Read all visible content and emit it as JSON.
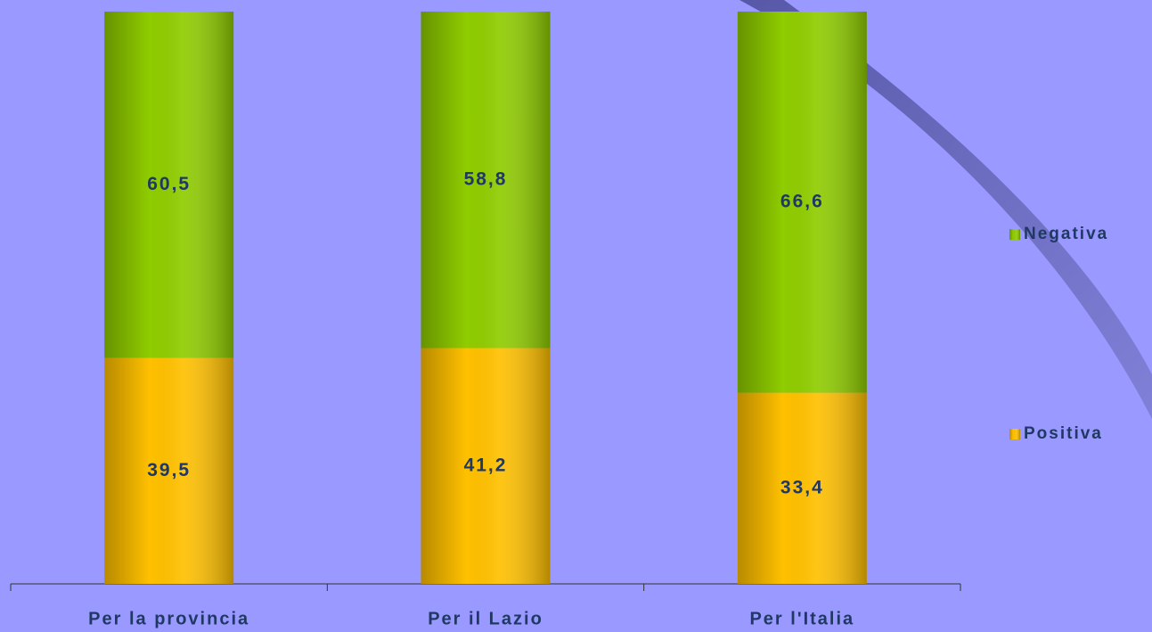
{
  "chart_data": {
    "type": "stacked_bar",
    "categories": [
      "Per la provincia",
      "Per il Lazio",
      "Per l'Italia"
    ],
    "series": [
      {
        "name": "Positiva",
        "color": "#ffc000",
        "values": [
          39.5,
          41.2,
          33.4
        ],
        "value_labels": [
          "39,5",
          "41,2",
          "33,4"
        ]
      },
      {
        "name": "Negativa",
        "color": "#8fcc00",
        "values": [
          60.5,
          58.8,
          66.6
        ],
        "value_labels": [
          "60,5",
          "58,8",
          "66,6"
        ]
      }
    ],
    "legend": "right"
  }
}
